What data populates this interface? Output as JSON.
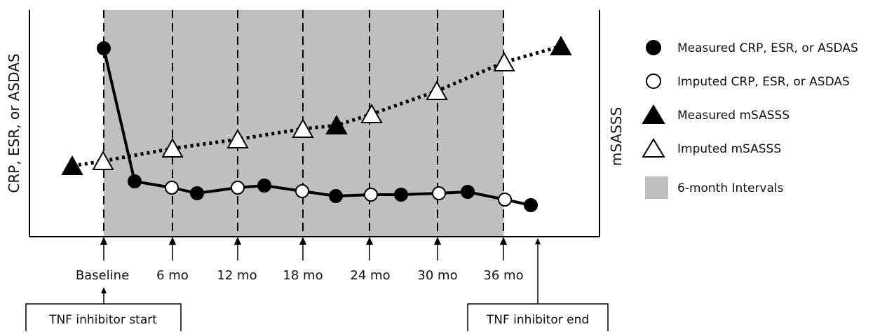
{
  "y_left_label": "CRP, ESR, or ASDAS",
  "y_right_label": "mSASSS",
  "timepoints": [
    "Baseline",
    "6 mo",
    "12 mo",
    "18 mo",
    "24 mo",
    "30 mo",
    "36 mo"
  ],
  "callouts": {
    "start": "TNF inhibitor start",
    "end": "TNF inhibitor end"
  },
  "legend": [
    {
      "key": "measured_lab",
      "label": "Measured CRP, ESR, or ASDAS",
      "icon": "filled-circle-icon"
    },
    {
      "key": "imputed_lab",
      "label": "Imputed CRP, ESR, or ASDAS",
      "icon": "open-circle-icon"
    },
    {
      "key": "measured_msasss",
      "label": "Measured mSASSS",
      "icon": "filled-triangle-icon"
    },
    {
      "key": "imputed_msasss",
      "label": "Imputed mSASSS",
      "icon": "open-triangle-icon"
    },
    {
      "key": "interval",
      "label": "6-month Intervals",
      "icon": "gray-square-icon"
    }
  ],
  "colors": {
    "interval_fill": "#bfbfbf",
    "marker_filled": "#000000",
    "marker_open": "#ffffff",
    "line": "#000000"
  }
}
